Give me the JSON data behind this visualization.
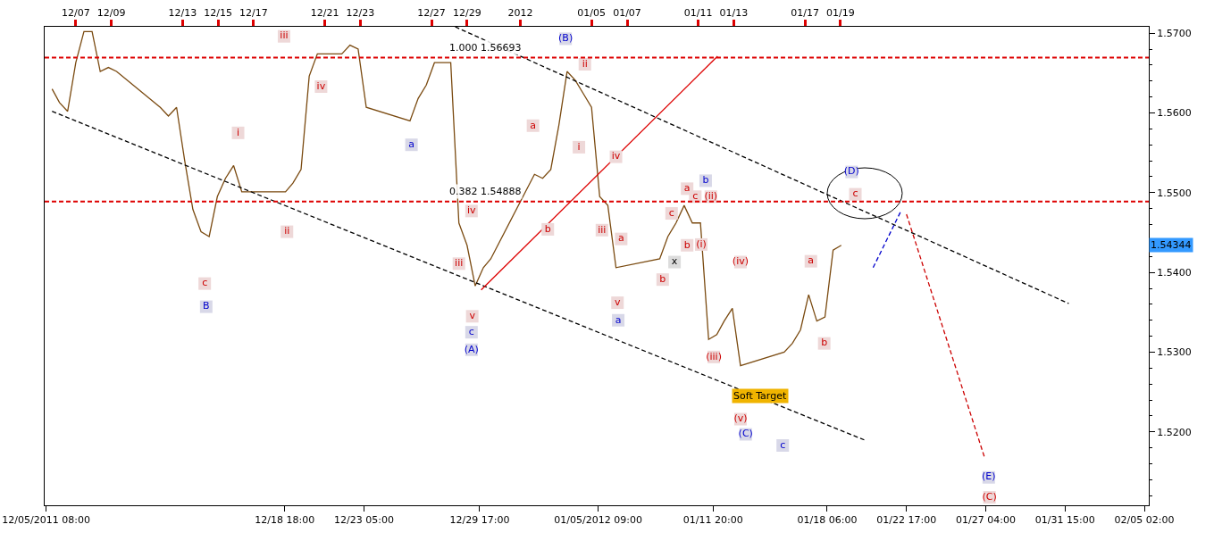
{
  "chart_data": {
    "type": "line",
    "xlim": [
      "2011-12-05T06:00",
      "2012-02-05T08:00"
    ],
    "xticks": [
      {
        "value": "2011-12-05T08:00",
        "label": "12/05/2011 08:00"
      },
      {
        "value": "2011-12-18T18:00",
        "label": "12/18 18:00"
      },
      {
        "value": "2011-12-23T05:00",
        "label": "12/23 05:00"
      },
      {
        "value": "2011-12-29T17:00",
        "label": "12/29 17:00"
      },
      {
        "value": "2012-01-05T09:00",
        "label": "01/05/2012 09:00"
      },
      {
        "value": "2012-01-11T20:00",
        "label": "01/11 20:00"
      },
      {
        "value": "2012-01-18T06:00",
        "label": "01/18 06:00"
      },
      {
        "value": "2012-01-22T17:00",
        "label": "01/22 17:00"
      },
      {
        "value": "2012-01-27T04:00",
        "label": "01/27 04:00"
      },
      {
        "value": "2012-01-31T15:00",
        "label": "01/31 15:00"
      },
      {
        "value": "2012-02-05T02:00",
        "label": "02/05 02:00"
      }
    ],
    "x2lim": [
      "2011-12-05T06:00",
      "2012-02-05T08:00"
    ],
    "x2ticks": [
      {
        "value": "2011-12-07",
        "label": "12/07"
      },
      {
        "value": "2011-12-09",
        "label": "12/09"
      },
      {
        "value": "2011-12-13",
        "label": "12/13"
      },
      {
        "value": "2011-12-15",
        "label": "12/15"
      },
      {
        "value": "2011-12-17",
        "label": "12/17"
      },
      {
        "value": "2011-12-21",
        "label": "12/21"
      },
      {
        "value": "2011-12-23",
        "label": "12/23"
      },
      {
        "value": "2011-12-27",
        "label": "12/27"
      },
      {
        "value": "2011-12-29",
        "label": "12/29"
      },
      {
        "value": "2012-01-01",
        "label": "2012"
      },
      {
        "value": "2012-01-05",
        "label": "01/05"
      },
      {
        "value": "2012-01-07",
        "label": "01/07"
      },
      {
        "value": "2012-01-11",
        "label": "01/11"
      },
      {
        "value": "2012-01-13",
        "label": "01/13"
      },
      {
        "value": "2012-01-17",
        "label": "01/17"
      },
      {
        "value": "2012-01-19",
        "label": "01/19"
      }
    ],
    "ylim": [
      1.5108,
      1.5708
    ],
    "yticks": [
      {
        "value": 1.52,
        "label": "1.5200"
      },
      {
        "value": 1.53,
        "label": "1.5300"
      },
      {
        "value": 1.54,
        "label": "1.5400"
      },
      {
        "value": 1.55,
        "label": "1.5500"
      },
      {
        "value": 1.56,
        "label": "1.5600"
      },
      {
        "value": 1.57,
        "label": "1.5700"
      }
    ],
    "series": [
      {
        "color": "#7a4a10",
        "line_style": "solid",
        "x": [
          "2011-12-05T16:00",
          "2011-12-06T02:00",
          "2011-12-06T13:00",
          "2011-12-07T00:00",
          "2011-12-07T11:00",
          "2011-12-07T22:00",
          "2011-12-08T09:00",
          "2011-12-08T20:00",
          "2011-12-09T07:00",
          "2011-12-11T18:00",
          "2011-12-12T05:00",
          "2011-12-12T16:00",
          "2011-12-13T03:00",
          "2011-12-13T14:00",
          "2011-12-14T01:00",
          "2011-12-14T12:00",
          "2011-12-14T23:00",
          "2011-12-15T10:00",
          "2011-12-15T21:00",
          "2011-12-16T08:00",
          "2011-12-18T19:00",
          "2011-12-19T05:00",
          "2011-12-19T16:00",
          "2011-12-20T03:00",
          "2011-12-20T14:00",
          "2011-12-21T01:00",
          "2011-12-21T12:00",
          "2011-12-21T23:00",
          "2011-12-22T10:00",
          "2011-12-22T21:00",
          "2011-12-23T08:00",
          "2011-12-25T19:00",
          "2011-12-26T06:00",
          "2011-12-26T17:00",
          "2011-12-27T04:00",
          "2011-12-27T15:00",
          "2011-12-28T02:00",
          "2011-12-28T13:00",
          "2011-12-29T00:00",
          "2011-12-29T11:00",
          "2011-12-29T22:00",
          "2011-12-30T08:00",
          "2012-01-01T19:00",
          "2012-01-02T06:00",
          "2012-01-02T17:00",
          "2012-01-03T04:00",
          "2012-01-03T15:00",
          "2012-01-04T02:00",
          "2012-01-04T13:00",
          "2012-01-05T00:00",
          "2012-01-05T11:00",
          "2012-01-05T22:00",
          "2012-01-06T09:00",
          "2012-01-08T20:00",
          "2012-01-09T07:00",
          "2012-01-09T18:00",
          "2012-01-10T05:00",
          "2012-01-10T16:00",
          "2012-01-11T03:00",
          "2012-01-11T14:00",
          "2012-01-12T01:00",
          "2012-01-12T11:00",
          "2012-01-12T22:00",
          "2012-01-13T09:00",
          "2012-01-15T20:00",
          "2012-01-16T07:00",
          "2012-01-16T18:00",
          "2012-01-17T05:00",
          "2012-01-17T16:00",
          "2012-01-18T03:00",
          "2012-01-18T14:00",
          "2012-01-19T01:00"
        ],
        "values": [
          1.563,
          1.5613,
          1.5602,
          1.5663,
          1.5702,
          1.5702,
          1.5652,
          1.5657,
          1.5652,
          1.5607,
          1.5596,
          1.5607,
          1.554,
          1.5479,
          1.5451,
          1.5445,
          1.5495,
          1.5518,
          1.5534,
          1.5501,
          1.5501,
          1.5512,
          1.5529,
          1.5646,
          1.5674,
          1.5674,
          1.5674,
          1.5674,
          1.5685,
          1.568,
          1.5607,
          1.559,
          1.5618,
          1.5635,
          1.5663,
          1.5663,
          1.5663,
          1.5462,
          1.5434,
          1.5383,
          1.5406,
          1.5417,
          1.5523,
          1.5518,
          1.5529,
          1.5585,
          1.5652,
          1.5641,
          1.5624,
          1.5607,
          1.5495,
          1.5484,
          1.5406,
          1.5417,
          1.5445,
          1.5462,
          1.5484,
          1.5462,
          1.5462,
          1.5316,
          1.5322,
          1.5339,
          1.5355,
          1.5283,
          1.53,
          1.5311,
          1.5328,
          1.5372,
          1.5339,
          1.5344,
          1.5428,
          1.5434
        ]
      },
      {
        "color": "#000000",
        "line_style": "dashed",
        "x": [
          "2011-12-28T08:00",
          "2012-01-31T20:00"
        ],
        "values": [
          1.5708,
          1.5361
        ]
      },
      {
        "color": "#000000",
        "line_style": "dashed",
        "x": [
          "2011-12-05T16:00",
          "2012-01-20T08:00"
        ],
        "values": [
          1.5602,
          1.519
        ]
      },
      {
        "color": "#dd0000",
        "line_style": "solid",
        "x": [
          "2011-12-29T19:00",
          "2012-01-12T02:00"
        ],
        "values": [
          1.5378,
          1.5671
        ]
      },
      {
        "color": "#0000cc",
        "line_style": "dashed",
        "x": [
          "2012-01-20T20:00",
          "2012-01-22T09:00"
        ],
        "values": [
          1.5406,
          1.5476
        ]
      },
      {
        "color": "#cc0000",
        "line_style": "dashed",
        "x": [
          "2012-01-22T17:00",
          "2012-01-27T02:00"
        ],
        "values": [
          1.5473,
          1.5169
        ]
      },
      {
        "type": "scatter",
        "marker": "square",
        "color": "#eed8d8",
        "x": [
          "2011-12-18T17:00",
          "2011-12-20T19:00",
          "2011-12-16T03:00",
          "2011-12-18T21:00",
          "2011-12-14T06:00",
          "2011-12-28T13:00",
          "2011-12-29T06:00",
          "2011-12-29T07:00",
          "2012-01-04T15:00",
          "2012-01-01T17:00",
          "2012-01-04T07:00",
          "2012-01-02T13:00",
          "2012-01-06T09:00",
          "2012-01-05T14:00",
          "2012-01-06T16:00",
          "2012-01-09T00:00",
          "2012-01-06T11:00",
          "2012-01-09T12:00",
          "2012-01-10T09:00",
          "2012-01-10T20:00",
          "2012-01-11T17:00",
          "2012-01-10T09:00",
          "2012-01-11T04:00",
          "2012-01-13T09:00",
          "2012-01-17T08:00",
          "2012-01-11T21:00",
          "2012-01-13T09:00",
          "2012-01-18T02:00",
          "2012-01-19T20:00",
          "2012-01-27T09:00"
        ],
        "values": [
          1.5696,
          1.5633,
          1.5575,
          1.5451,
          1.5386,
          1.5411,
          1.5477,
          1.5345,
          1.5661,
          1.5584,
          1.5557,
          1.5454,
          1.5545,
          1.5453,
          1.5442,
          1.5391,
          1.5362,
          1.5474,
          1.5505,
          1.5495,
          1.5495,
          1.5434,
          1.5435,
          1.5413,
          1.5414,
          1.5294,
          1.5216,
          1.5311,
          1.5498,
          1.5118
        ],
        "value_labels": [
          "iii",
          "iv",
          "i",
          "ii",
          "c",
          "iii",
          "iv",
          "v",
          "ii",
          "a",
          "i",
          "b",
          "iv",
          "iii",
          "a",
          "b",
          "v",
          "c",
          "a",
          "c",
          "(ii)",
          "b",
          "(i)",
          "(iv)",
          "a",
          "(iii)",
          "(v)",
          "b",
          "c",
          "(C)"
        ]
      },
      {
        "type": "scatter",
        "marker": "square",
        "color": "#d8d8e8",
        "x": [
          "2011-12-14T08:00",
          "2011-12-25T21:00",
          "2011-12-29T06:00",
          "2011-12-29T06:00",
          "2012-01-03T13:00",
          "2012-01-06T12:00",
          "2012-01-11T10:00",
          "2012-01-13T16:00",
          "2012-01-15T18:00",
          "2012-01-19T15:00",
          "2012-01-27T08:00"
        ],
        "values": [
          1.5357,
          1.556,
          1.5325,
          1.5303,
          1.5693,
          1.534,
          1.5515,
          1.5197,
          1.5183,
          1.5526,
          1.5143
        ],
        "value_labels": [
          "B",
          "a",
          "c",
          "(A)",
          "(B)",
          "a",
          "b",
          "(C)",
          "c",
          "(D)",
          "(E)"
        ]
      },
      {
        "type": "scatter",
        "marker": "square",
        "color": "#dcdcdc",
        "x": [
          "2012-01-09T16:00"
        ],
        "values": [
          1.5413
        ],
        "value_labels": [
          "x"
        ]
      }
    ],
    "ref_lines": [
      {
        "axis": "y",
        "value": 1.56693,
        "label": "1.000 1.56693",
        "color": "#dd0000",
        "line_style": "dashed"
      },
      {
        "axis": "y",
        "value": 1.54888,
        "label": "0.382 1.54888",
        "color": "#dd0000",
        "line_style": "dashed"
      }
    ],
    "annotations": [
      "1.54344",
      {
        "text": "Soft Target",
        "x": "2012-01-13T09:00",
        "y": 1.5283
      }
    ]
  }
}
